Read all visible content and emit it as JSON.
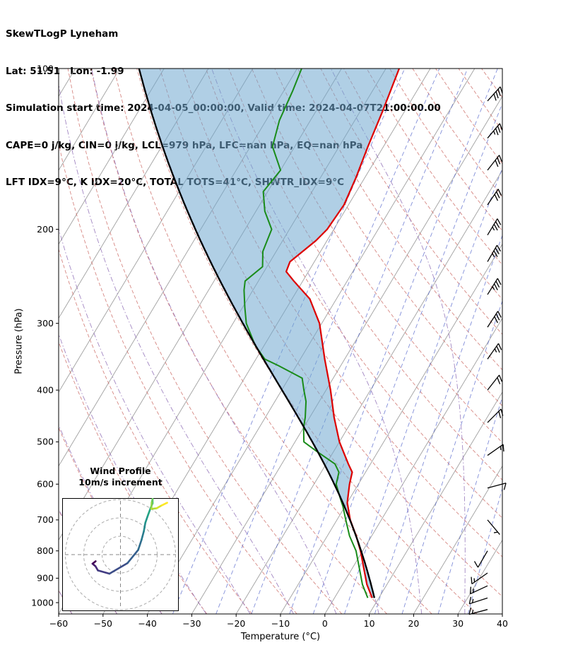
{
  "header": {
    "title": "SkewTLogP Lyneham",
    "line_location": "Lat: 51.51   Lon: -1.99",
    "line_times": "Simulation start time: 2024-04-05_00:00:00, Valid time: 2024-04-07T21:00:00.00",
    "line_indices1": "CAPE=0 j/kg, CIN=0 j/kg, LCL=979 hPa, LFC=nan hPa, EQ=nan hPa",
    "line_indices2": "LFT IDX=9°C, K IDX=20°C, TOTAL TOTS=41°C, SHWTR_IDX=9°C"
  },
  "axes": {
    "x_label": "Temperature (°C)",
    "y_label": "Pressure (hPa)"
  },
  "inset": {
    "title1": "Wind Profile",
    "title2": "10m/s increment",
    "rings": [
      10,
      20,
      30
    ],
    "ring_increment_ms": 10
  },
  "colors": {
    "isotherm": "#a0a0a0",
    "dry_adiabat": "#cc6a64",
    "moist_adiabat": "#9272b8",
    "mixing_ratio": "#4d5fc9",
    "temperature": "#dd0000",
    "dewpoint": "#1a8c1a",
    "parcel": "#000000",
    "shading": "#6fa8cf",
    "spine": "#000000",
    "barb": "#000000",
    "viridis": [
      "#440154",
      "#46327e",
      "#365c8d",
      "#277f8e",
      "#1fa187",
      "#4ac16d",
      "#a0da39",
      "#fde725"
    ]
  },
  "chart_data": {
    "type": "line",
    "description": "Skew-T Log-P thermodynamic sounding with wind barbs and hodograph inset",
    "x_axis": {
      "label": "Temperature (°C)",
      "range": [
        -60,
        40
      ],
      "ticks": [
        -60,
        -50,
        -40,
        -30,
        -20,
        -10,
        0,
        10,
        20,
        30,
        40
      ]
    },
    "y_axis": {
      "label": "Pressure (hPa)",
      "scale": "log",
      "range": [
        1050,
        100
      ],
      "ticks": [
        100,
        200,
        300,
        400,
        500,
        600,
        700,
        800,
        900,
        1000
      ]
    },
    "series": [
      {
        "name": "temperature",
        "color": "#dd0000",
        "units": [
          "hPa",
          "°C"
        ],
        "points": [
          [
            980,
            8.5
          ],
          [
            925,
            5.5
          ],
          [
            850,
            2
          ],
          [
            800,
            -0.5
          ],
          [
            750,
            -3.5
          ],
          [
            700,
            -7
          ],
          [
            650,
            -10
          ],
          [
            600,
            -12
          ],
          [
            570,
            -13
          ],
          [
            550,
            -15
          ],
          [
            500,
            -20
          ],
          [
            450,
            -24.5
          ],
          [
            400,
            -29
          ],
          [
            350,
            -34.5
          ],
          [
            300,
            -40.5
          ],
          [
            270,
            -46
          ],
          [
            250,
            -52
          ],
          [
            240,
            -55
          ],
          [
            230,
            -55.5
          ],
          [
            210,
            -52.5
          ],
          [
            200,
            -51.5
          ],
          [
            180,
            -51
          ],
          [
            160,
            -52
          ],
          [
            140,
            -53.5
          ],
          [
            120,
            -55
          ],
          [
            100,
            -57
          ]
        ]
      },
      {
        "name": "dewpoint",
        "color": "#1a8c1a",
        "units": [
          "hPa",
          "°C"
        ],
        "points": [
          [
            980,
            7.5
          ],
          [
            925,
            4.5
          ],
          [
            850,
            1
          ],
          [
            800,
            -1.5
          ],
          [
            750,
            -5
          ],
          [
            700,
            -8
          ],
          [
            660,
            -10.5
          ],
          [
            640,
            -12
          ],
          [
            600,
            -15
          ],
          [
            570,
            -16
          ],
          [
            550,
            -18
          ],
          [
            520,
            -24
          ],
          [
            500,
            -28
          ],
          [
            470,
            -30
          ],
          [
            450,
            -31
          ],
          [
            420,
            -33
          ],
          [
            400,
            -35
          ],
          [
            380,
            -37
          ],
          [
            360,
            -44
          ],
          [
            350,
            -48
          ],
          [
            330,
            -52
          ],
          [
            300,
            -57
          ],
          [
            280,
            -59.5
          ],
          [
            260,
            -62
          ],
          [
            250,
            -63
          ],
          [
            235,
            -61
          ],
          [
            220,
            -63
          ],
          [
            200,
            -64
          ],
          [
            185,
            -68
          ],
          [
            170,
            -71
          ],
          [
            155,
            -70
          ],
          [
            140,
            -75
          ],
          [
            125,
            -77
          ],
          [
            110,
            -78
          ],
          [
            100,
            -79
          ]
        ]
      },
      {
        "name": "parcel_moist_adiabat",
        "color": "#000000",
        "start_pressure": 980,
        "start_temp": 9.0
      }
    ],
    "wind_barbs": {
      "units": "m/s",
      "columns": [
        "pressure_hPa",
        "speed",
        "direction_from_deg"
      ],
      "levels": [
        [
          1030,
          14,
          75
        ],
        [
          980,
          16,
          72
        ],
        [
          930,
          15,
          65
        ],
        [
          880,
          15,
          55
        ],
        [
          800,
          12,
          30
        ],
        [
          700,
          6,
          320
        ],
        [
          610,
          10,
          255
        ],
        [
          530,
          14,
          235
        ],
        [
          460,
          18,
          225
        ],
        [
          400,
          22,
          218
        ],
        [
          350,
          26,
          215
        ],
        [
          305,
          30,
          213
        ],
        [
          265,
          33,
          212
        ],
        [
          230,
          35,
          210
        ],
        [
          205,
          33,
          211
        ],
        [
          180,
          30,
          214
        ],
        [
          155,
          32,
          218
        ],
        [
          135,
          35,
          220
        ],
        [
          115,
          38,
          222
        ]
      ]
    },
    "hodograph": {
      "ring_increment_ms": 10,
      "rings": [
        10,
        20,
        30
      ],
      "derived_from": "wind_barbs"
    },
    "background_lines": {
      "isotherms_step_C": 10,
      "dry_adiabats_theta_C": [
        -60,
        190,
        10
      ],
      "moist_adiabats_thetaw_C": [
        -60,
        40,
        10
      ],
      "mixing_ratio_g_kg": [
        0.2,
        0.5,
        1,
        2,
        3,
        5,
        8,
        12,
        20,
        30
      ]
    },
    "legend": false,
    "grid": "skew-t background lattice"
  }
}
